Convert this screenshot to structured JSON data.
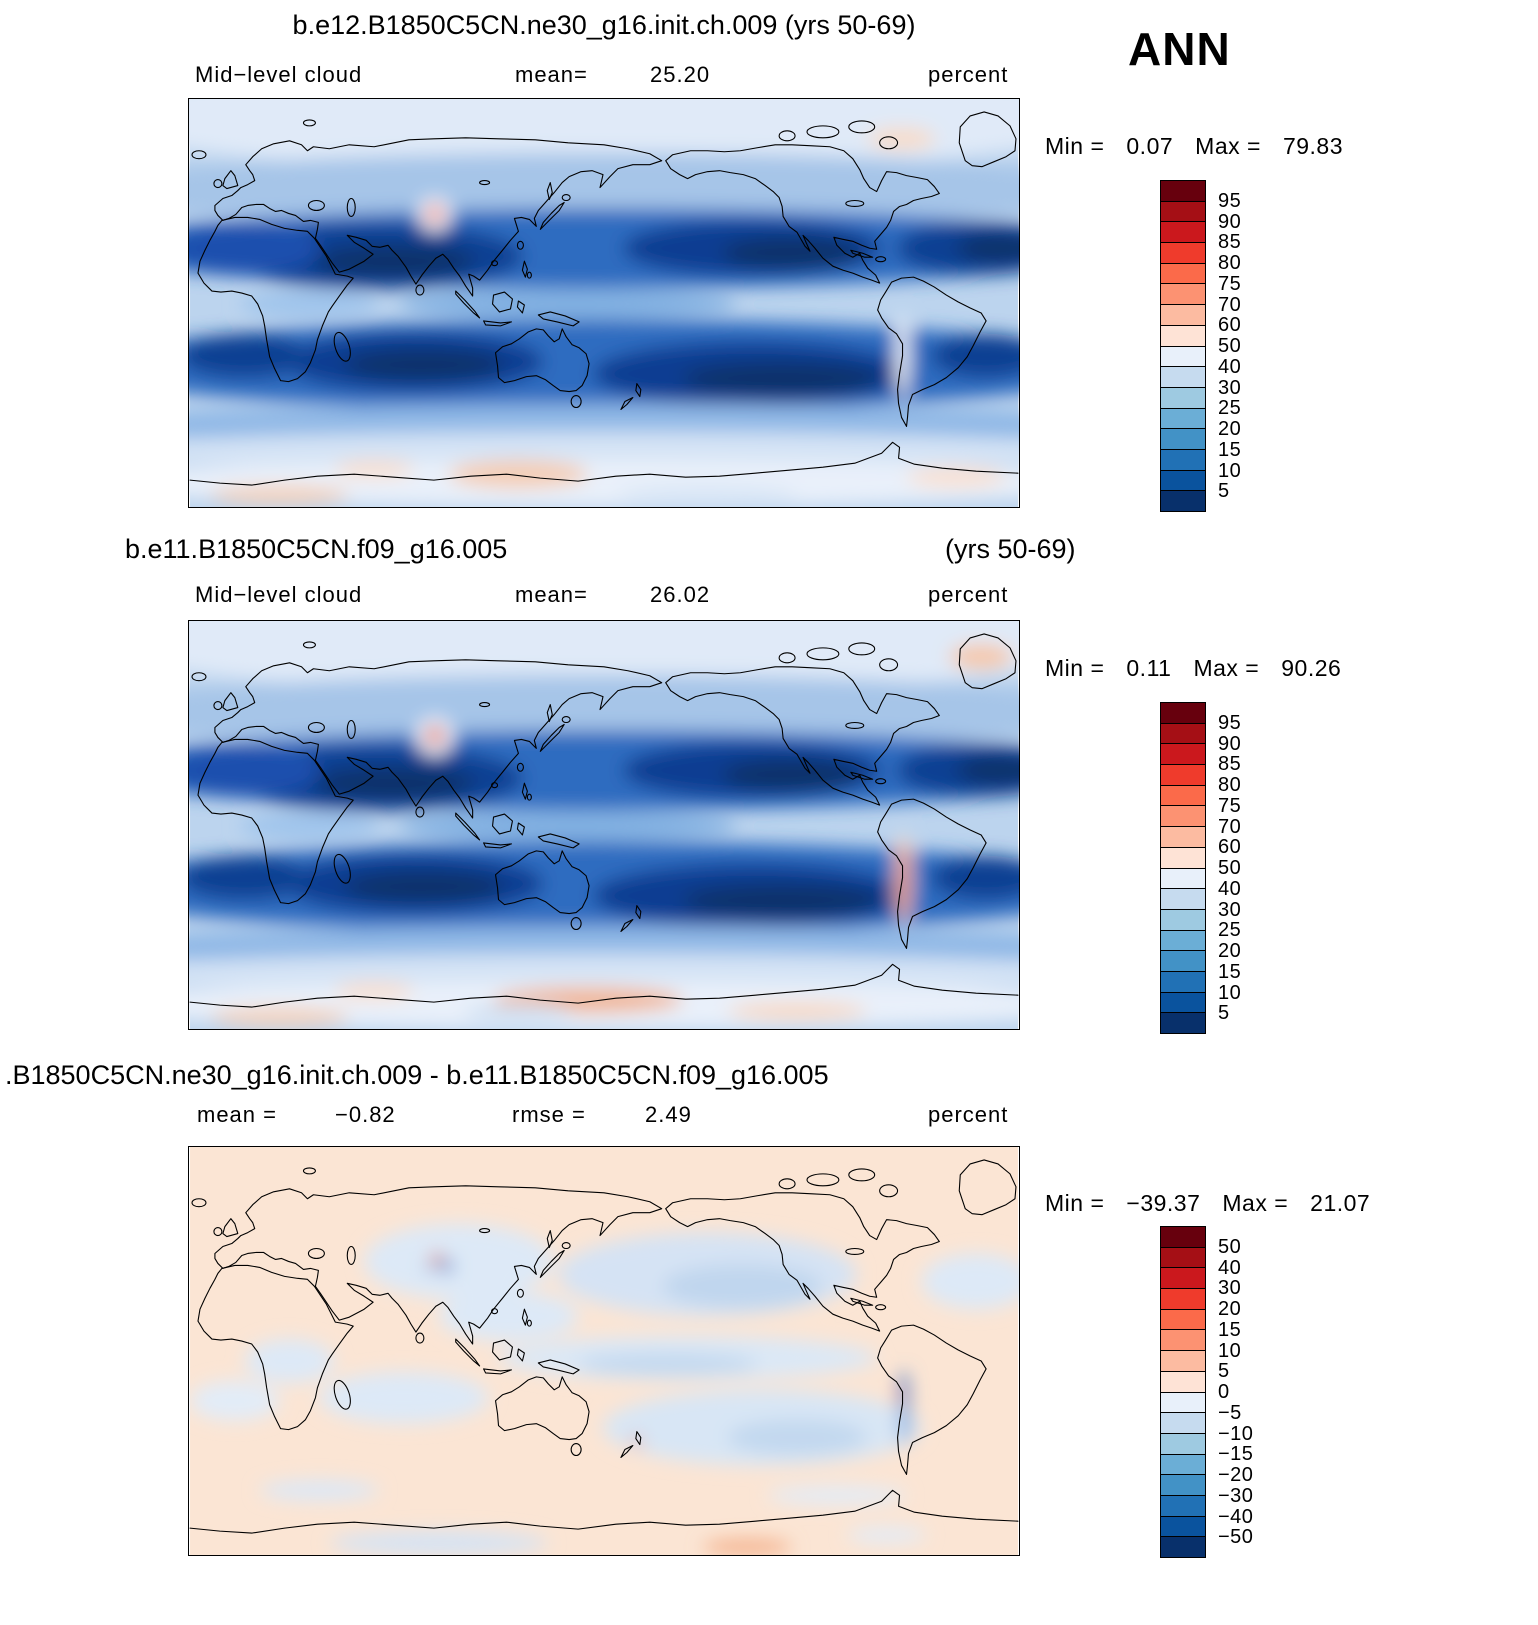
{
  "header": {
    "season": "ANN"
  },
  "panels": [
    {
      "title": "b.e12.B1850C5CN.ne30_g16.init.ch.009 (yrs 50-69)",
      "variable": "Mid−level cloud",
      "mean_label": "mean=",
      "mean": "25.20",
      "units": "percent",
      "min_label": "Min =",
      "min": "0.07",
      "max_label": "Max =",
      "max": "79.83"
    },
    {
      "title": "b.e11.B1850C5CN.f09_g16.005",
      "title_right": "(yrs 50-69)",
      "variable": "Mid−level cloud",
      "mean_label": "mean=",
      "mean": "26.02",
      "units": "percent",
      "min_label": "Min =",
      "min": "0.11",
      "max_label": "Max =",
      "max": "90.26"
    },
    {
      "title": ".B1850C5CN.ne30_g16.init.ch.009 - b.e11.B1850C5CN.f09_g16.005",
      "mean_label": "mean =",
      "mean": "−0.82",
      "rmse_label": "rmse =",
      "rmse": "2.49",
      "units": "percent",
      "min_label": "Min =",
      "min": "−39.37",
      "max_label": "Max =",
      "max": "21.07"
    }
  ],
  "chart_data": [
    {
      "type": "heatmap",
      "subtype": "filled_contour_global_map",
      "title": "b.e12.B1850C5CN.ne30_g16.init.ch.009 (yrs 50-69)",
      "variable": "Mid-level cloud",
      "units": "percent",
      "season": "ANN",
      "stats": {
        "mean": 25.2,
        "min": 0.07,
        "max": 79.83
      },
      "levels": [
        5,
        10,
        15,
        20,
        25,
        30,
        40,
        50,
        60,
        70,
        75,
        80,
        85,
        90,
        95
      ],
      "level_labels": [
        "95",
        "90",
        "85",
        "80",
        "75",
        "70",
        "60",
        "50",
        "40",
        "30",
        "25",
        "20",
        "15",
        "10",
        "5"
      ],
      "palette": [
        "#67000d",
        "#a50f15",
        "#cb181d",
        "#ef3b2c",
        "#fb6a4a",
        "#fc9272",
        "#fcbba1",
        "#fee3d6",
        "#e8f0fa",
        "#c6dbef",
        "#9ecae1",
        "#6baed6",
        "#4292c6",
        "#2171b5",
        "#0a539e",
        "#08306b"
      ],
      "extent": {
        "lat": [
          -90,
          90
        ],
        "lon": "global, Greenwich near left edge"
      },
      "legend_position": "right",
      "notes": "Low cloud fraction (dark blue, <5-20%) in subtropical ocean bands of both hemispheres; higher values (pale blue/peach, 40-60%) at mid/high latitudes and over Antarctica; local maximum (orange, 70-80%) over the Tibetan Plateau."
    },
    {
      "type": "heatmap",
      "subtype": "filled_contour_global_map",
      "title": "b.e11.B1850C5CN.f09_g16.005 (yrs 50-69)",
      "variable": "Mid-level cloud",
      "units": "percent",
      "season": "ANN",
      "stats": {
        "mean": 26.02,
        "min": 0.11,
        "max": 90.26
      },
      "levels": [
        5,
        10,
        15,
        20,
        25,
        30,
        40,
        50,
        60,
        70,
        75,
        80,
        85,
        90,
        95
      ],
      "level_labels": [
        "95",
        "90",
        "85",
        "80",
        "75",
        "70",
        "60",
        "50",
        "40",
        "30",
        "25",
        "20",
        "15",
        "10",
        "5"
      ],
      "palette": [
        "#67000d",
        "#a50f15",
        "#cb181d",
        "#ef3b2c",
        "#fb6a4a",
        "#fc9272",
        "#fcbba1",
        "#fee3d6",
        "#e8f0fa",
        "#c6dbef",
        "#9ecae1",
        "#6baed6",
        "#4292c6",
        "#2171b5",
        "#0a539e",
        "#08306b"
      ],
      "extent": {
        "lat": [
          -90,
          90
        ],
        "lon": "global, Greenwich near left edge"
      },
      "legend_position": "right",
      "notes": "Same pattern as case 1 with stronger maxima (red, 80-90%) over the Tibetan Plateau and along the Andes, and warmer (peach/orange) values over Greenland and near the Antarctic coast."
    },
    {
      "type": "heatmap",
      "subtype": "filled_contour_global_map_difference",
      "title": ".B1850C5CN.ne30_g16.init.ch.009 - b.e11.B1850C5CN.f09_g16.005",
      "variable": "Mid-level cloud difference",
      "units": "percent",
      "season": "ANN",
      "stats": {
        "mean": -0.82,
        "rmse": 2.49,
        "min": -39.37,
        "max": 21.07
      },
      "levels": [
        -50,
        -40,
        -30,
        -20,
        -15,
        -10,
        -5,
        0,
        5,
        10,
        15,
        20,
        30,
        40,
        50
      ],
      "level_labels": [
        "50",
        "40",
        "30",
        "20",
        "15",
        "10",
        "5",
        "0",
        "−5",
        "−10",
        "−15",
        "−20",
        "−30",
        "−40",
        "−50"
      ],
      "palette": [
        "#67000d",
        "#a50f15",
        "#cb181d",
        "#ef3b2c",
        "#fb6a4a",
        "#fc9272",
        "#fcbba1",
        "#fee3d6",
        "#e8f0fa",
        "#c6dbef",
        "#9ecae1",
        "#6baed6",
        "#4292c6",
        "#2171b5",
        "#0a539e",
        "#08306b"
      ],
      "extent": {
        "lat": [
          -90,
          90
        ],
        "lon": "global, Greenwich near left edge"
      },
      "legend_position": "right",
      "notes": "Mostly small positive differences (pale peach, 0-5%) with weak negative patches (pale blue, 0 to -10%) over the North Pacific, tropical oceans and parts of Asia; strong localized negative differences (deep blue) along the Andes and near Tibet."
    }
  ]
}
